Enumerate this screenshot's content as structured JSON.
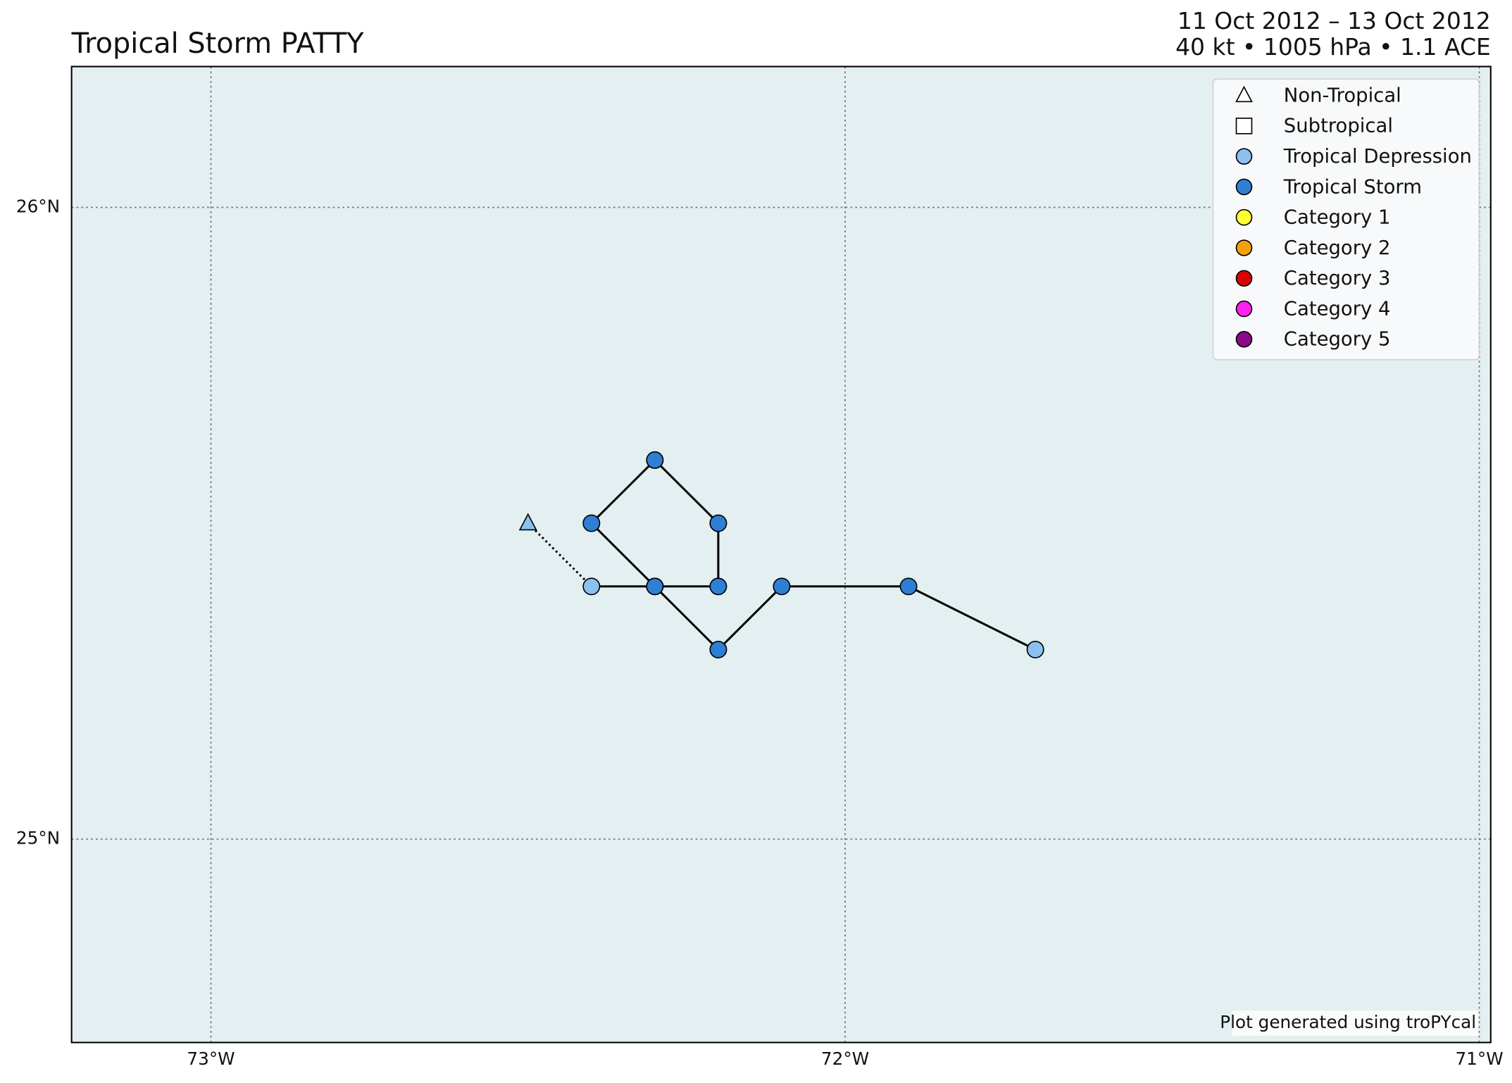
{
  "chart_data": {
    "type": "track",
    "title": "Tropical Storm PATTY",
    "subtitle_lines": [
      "11 Oct 2012 – 13 Oct 2012",
      "40 kt • 1005 hPa • 1.1 ACE"
    ],
    "footnote": "Plot generated using troPYcal",
    "x": [
      -71.7,
      -71.9,
      -72.1,
      -72.2,
      -72.3,
      -72.4,
      -72.3,
      -72.2,
      -72.2,
      -72.3,
      -72.4,
      -72.5
    ],
    "y": [
      25.3,
      25.4,
      25.4,
      25.3,
      25.4,
      25.5,
      25.6,
      25.5,
      25.4,
      25.4,
      25.4,
      25.5
    ],
    "markers": [
      "circle",
      "circle",
      "circle",
      "circle",
      "circle",
      "circle",
      "circle",
      "circle",
      "circle",
      "circle",
      "circle",
      "triangle"
    ],
    "colors": [
      "#8cc0ee",
      "#2f7fd4",
      "#2f7fd4",
      "#2f7fd4",
      "#2f7fd4",
      "#2f7fd4",
      "#2f7fd4",
      "#2f7fd4",
      "#2f7fd4",
      "#2f7fd4",
      "#8cc0ee",
      "#8cc0ee"
    ],
    "xlim": [
      -73.2197,
      -70.982
    ],
    "ylim": [
      24.678,
      26.223
    ],
    "xticks": [
      {
        "value": -73,
        "label": "73°W"
      },
      {
        "value": -72,
        "label": "72°W"
      },
      {
        "value": -71,
        "label": "71°W"
      }
    ],
    "yticks": [
      {
        "value": 25,
        "label": "25°N"
      },
      {
        "value": 26,
        "label": "26°N"
      }
    ],
    "grid": true,
    "legend": [
      {
        "name": "Non-Tropical",
        "marker": "triangle",
        "color": "#ffffff"
      },
      {
        "name": "Subtropical",
        "marker": "square",
        "color": "#ffffff"
      },
      {
        "name": "Tropical Depression",
        "marker": "circle",
        "color": "#8cc0ee"
      },
      {
        "name": "Tropical Storm",
        "marker": "circle",
        "color": "#2f7fd4"
      },
      {
        "name": "Category 1",
        "marker": "circle",
        "color": "#ffff33"
      },
      {
        "name": "Category 2",
        "marker": "circle",
        "color": "#f5a00f"
      },
      {
        "name": "Category 3",
        "marker": "circle",
        "color": "#dd0000"
      },
      {
        "name": "Category 4",
        "marker": "circle",
        "color": "#ff22ee"
      },
      {
        "name": "Category 5",
        "marker": "circle",
        "color": "#8a0a8a"
      }
    ]
  }
}
